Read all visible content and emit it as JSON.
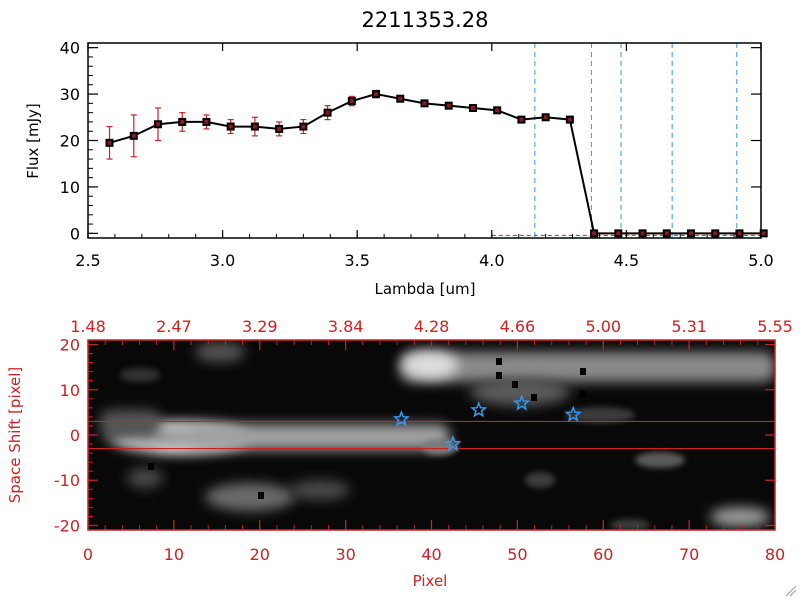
{
  "title": "2211353.28",
  "colors": {
    "axis_top": "#000000",
    "axis_bottom": "#cc2222",
    "errorbar": "#cc2222",
    "vline": "#3399ee",
    "star": "#3399ee",
    "hline": "#cc2222"
  },
  "chart_data": [
    {
      "type": "line",
      "title": "2211353.28",
      "xlabel": "Lambda [um]",
      "ylabel": "Flux [mJy]",
      "xlim": [
        2.5,
        5.0
      ],
      "ylim": [
        -1,
        41
      ],
      "xticks": [
        "2.5",
        "3.0",
        "3.5",
        "4.0",
        "4.5",
        "5.0"
      ],
      "yticks": [
        "0",
        "10",
        "20",
        "30",
        "40"
      ],
      "grid": false,
      "series": [
        {
          "x": [
            2.58,
            2.67,
            2.76,
            2.85,
            2.94,
            3.03,
            3.12,
            3.21,
            3.3,
            3.39,
            3.48,
            3.57,
            3.66,
            3.75,
            3.84,
            3.93,
            4.02,
            4.11,
            4.2,
            4.29,
            4.38,
            4.47,
            4.56,
            4.65,
            4.74,
            4.83,
            4.92,
            5.01
          ],
          "y": [
            19.5,
            21,
            23.5,
            24,
            24,
            23,
            23,
            22.5,
            23,
            26,
            28.5,
            30,
            29,
            28,
            27.5,
            27,
            26.5,
            24.5,
            25,
            24.5,
            0,
            0,
            0,
            0,
            0,
            0,
            0,
            0
          ],
          "err": [
            3.5,
            4.5,
            3.5,
            2,
            1.5,
            1.5,
            2,
            1.5,
            1.5,
            1.5,
            1,
            0.8,
            0.5,
            0.5,
            0.5,
            0.5,
            0.5,
            0.5,
            0.5,
            0.5,
            0,
            0,
            0,
            0,
            0,
            0,
            0,
            0
          ]
        }
      ],
      "vlines": [
        4.16,
        4.37,
        4.48,
        4.67,
        4.91
      ]
    },
    {
      "type": "heatmap",
      "xlabel": "Pixel",
      "ylabel": "Space Shift [pixel]",
      "xlim": [
        0,
        80
      ],
      "ylim": [
        -21,
        21
      ],
      "xticks": [
        "0",
        "10",
        "20",
        "30",
        "40",
        "50",
        "60",
        "70",
        "80"
      ],
      "yticks": [
        "-20",
        "-10",
        "0",
        "10",
        "20"
      ],
      "top_xticks": [
        "1.48",
        "2.47",
        "3.29",
        "3.84",
        "4.28",
        "4.66",
        "5.00",
        "5.31",
        "5.55"
      ],
      "hlines": [
        3,
        -3
      ],
      "stars": [
        {
          "x": 36.5,
          "y": 3.5
        },
        {
          "x": 42.5,
          "y": -2
        },
        {
          "x": 45.5,
          "y": 5.5
        },
        {
          "x": 50.5,
          "y": 7
        },
        {
          "x": 56.5,
          "y": 4.5
        }
      ]
    }
  ]
}
